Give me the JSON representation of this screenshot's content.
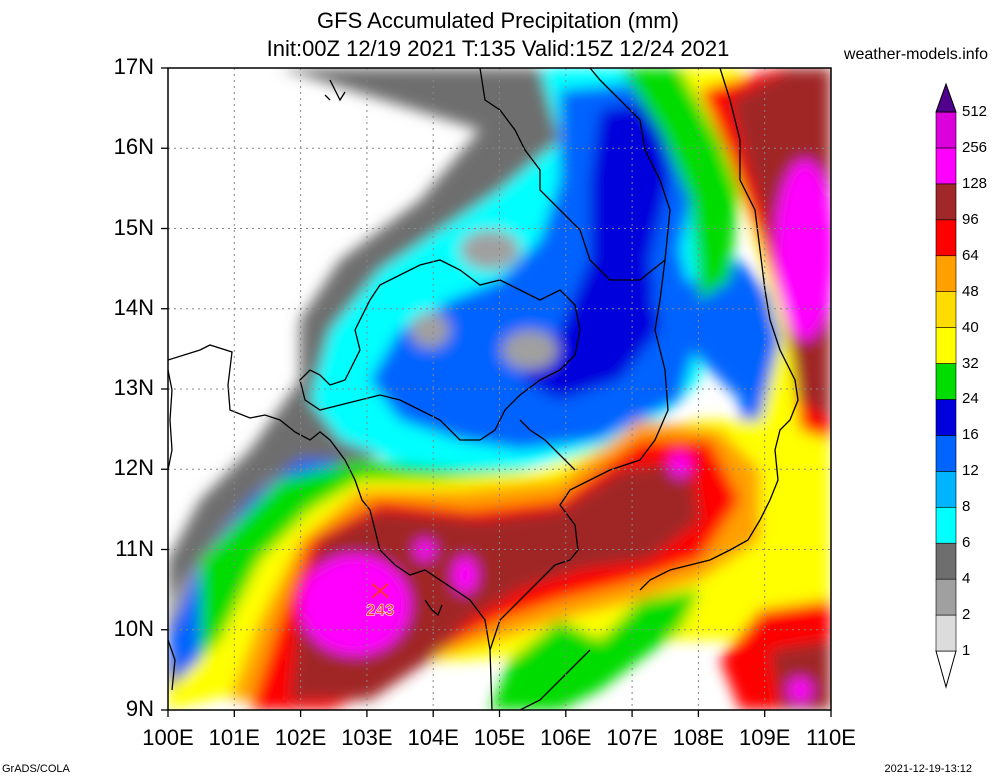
{
  "title_line1": "GFS Accumulated Precipitation (mm)",
  "title_line2": "Init:00Z 12/19 2021 T:135 Valid:15Z 12/24 2021",
  "source": "weather-models.info",
  "lat_labels": [
    "17N",
    "16N",
    "15N",
    "14N",
    "13N",
    "12N",
    "11N",
    "10N",
    "9N"
  ],
  "lon_labels": [
    "100E",
    "101E",
    "102E",
    "103E",
    "104E",
    "105E",
    "106E",
    "107E",
    "108E",
    "109E",
    "110E"
  ],
  "max_marker": {
    "value": "243",
    "lon": 103.2,
    "lat": 10.45
  },
  "colorbar": {
    "levels": [
      "1",
      "2",
      "4",
      "6",
      "8",
      "12",
      "16",
      "24",
      "32",
      "40",
      "48",
      "64",
      "96",
      "128",
      "256",
      "512"
    ],
    "colors": [
      "#dcdcdc",
      "#a0a0a0",
      "#6e6e6e",
      "#00ffff",
      "#00b4ff",
      "#0064ff",
      "#0000dc",
      "#00dc00",
      "#ffff00",
      "#ffdc00",
      "#ffa000",
      "#ff0000",
      "#a02828",
      "#ff00ff",
      "#dc00dc",
      "#a000c8",
      "#50008c"
    ]
  },
  "footer_left": "GrADS/COLA",
  "footer_right": "2021-12-19-13:12",
  "colors": {
    "grid": "#888888",
    "coast": "#000000",
    "marker": "#ff3030"
  }
}
